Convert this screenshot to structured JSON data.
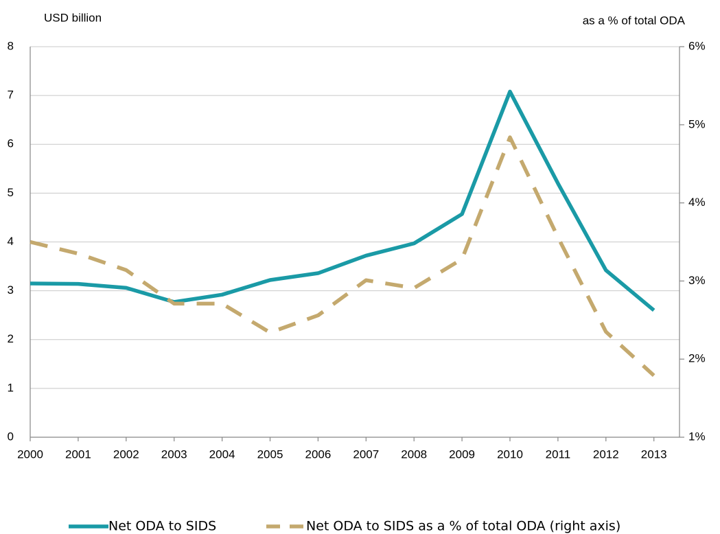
{
  "chart_data": {
    "type": "line",
    "y_label": "USD billion",
    "y2_label": "as a % of total ODA",
    "categories": [
      "2000",
      "2001",
      "2002",
      "2003",
      "2004",
      "2005",
      "2006",
      "2007",
      "2008",
      "2009",
      "2010",
      "2011",
      "2012",
      "2013"
    ],
    "series": [
      {
        "name": "Net ODA to SIDS",
        "color": "#1a9aa6",
        "values": [
          3.15,
          3.14,
          3.06,
          2.77,
          2.92,
          3.22,
          3.36,
          3.72,
          3.97,
          4.57,
          7.08,
          5.2,
          3.42,
          2.6
        ]
      },
      {
        "name": "Net ODA to SIDS as a % of total ODA (right axis)",
        "color": "#c4a96e",
        "axis": "y2",
        "dashed": true,
        "values": [
          3.5,
          3.35,
          3.14,
          2.71,
          2.71,
          2.34,
          2.56,
          3.01,
          2.91,
          3.28,
          4.84,
          3.56,
          2.35,
          1.79
        ]
      }
    ],
    "ylim": [
      0,
      8
    ],
    "yticks": [
      0,
      1,
      2,
      3,
      4,
      5,
      6,
      7,
      8
    ],
    "y2lim": [
      1,
      6
    ],
    "y2ticks": [
      {
        "value": 1,
        "label": "1%"
      },
      {
        "value": 2,
        "label": "2%"
      },
      {
        "value": 3,
        "label": "3%"
      },
      {
        "value": 4,
        "label": "4%"
      },
      {
        "value": 5,
        "label": "5%"
      },
      {
        "value": 6,
        "label": "6%"
      }
    ],
    "grid": true,
    "legend": "bottom"
  }
}
